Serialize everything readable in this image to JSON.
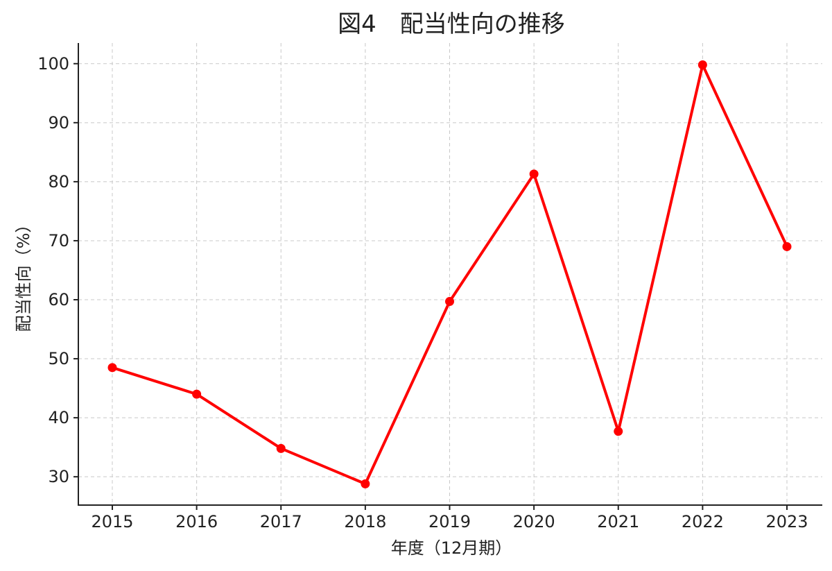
{
  "chart_data": {
    "type": "line",
    "title": "図4　配当性向の推移",
    "xlabel": "年度（12月期）",
    "ylabel": "配当性向（%）",
    "categories": [
      "2015",
      "2016",
      "2017",
      "2018",
      "2019",
      "2020",
      "2021",
      "2022",
      "2023"
    ],
    "series": [
      {
        "values": [
          48.5,
          44.0,
          34.8,
          28.8,
          59.7,
          81.3,
          37.7,
          99.8,
          69.0
        ]
      }
    ],
    "ylim": [
      25.2,
      103.5
    ],
    "yticks": [
      30,
      40,
      50,
      60,
      70,
      80,
      90,
      100
    ],
    "grid": true,
    "colors": {
      "line": "#ff0000",
      "marker": "#ff0000",
      "grid": "#c8c8c8",
      "axis": "#222222"
    }
  }
}
